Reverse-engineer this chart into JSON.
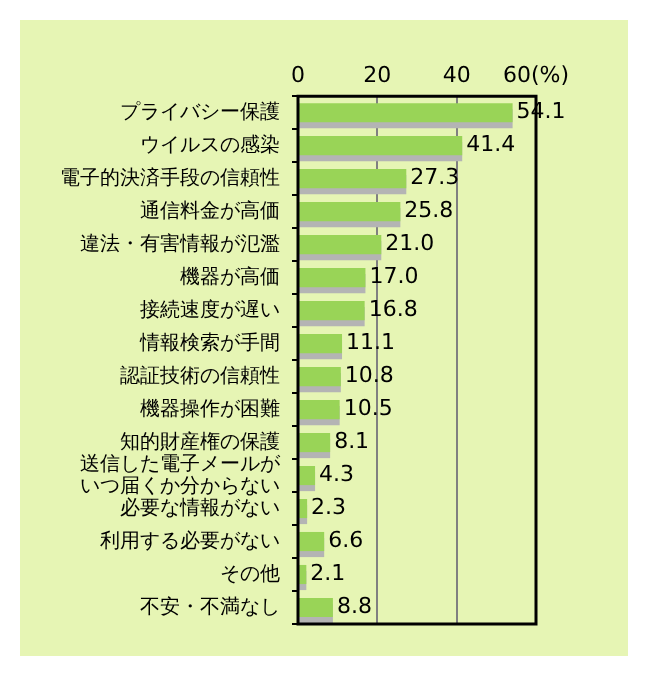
{
  "chart_data": {
    "type": "bar",
    "orientation": "horizontal",
    "categories": [
      "プライバシー保護",
      "ウイルスの感染",
      "電子的決済手段の信頼性",
      "通信料金が高価",
      "違法・有害情報が氾濫",
      "機器が高価",
      "接続速度が遅い",
      "情報検索が手間",
      "認証技術の信頼性",
      "機器操作が困難",
      "知的財産権の保護",
      "送信した電子メールがいつ届くか分からない",
      "必要な情報がない",
      "利用する必要がない",
      "その他",
      "不安・不満なし"
    ],
    "values": [
      54.1,
      41.4,
      27.3,
      25.8,
      21.0,
      17.0,
      16.8,
      11.1,
      10.8,
      10.5,
      8.1,
      4.3,
      2.3,
      6.6,
      2.1,
      8.8
    ],
    "value_labels": [
      "54.1",
      "41.4",
      "27.3",
      "25.8",
      "21.0",
      "17.0",
      "16.8",
      "11.1",
      "10.8",
      "10.5",
      "8.1",
      "4.3",
      "2.3",
      "6.6",
      "2.1",
      "8.8"
    ],
    "color": "#99d457",
    "xlim": [
      0,
      60
    ],
    "xticks": [
      0,
      20,
      40,
      {
        "value": 60,
        "label": "60(%)"
      }
    ],
    "grid": "x"
  }
}
